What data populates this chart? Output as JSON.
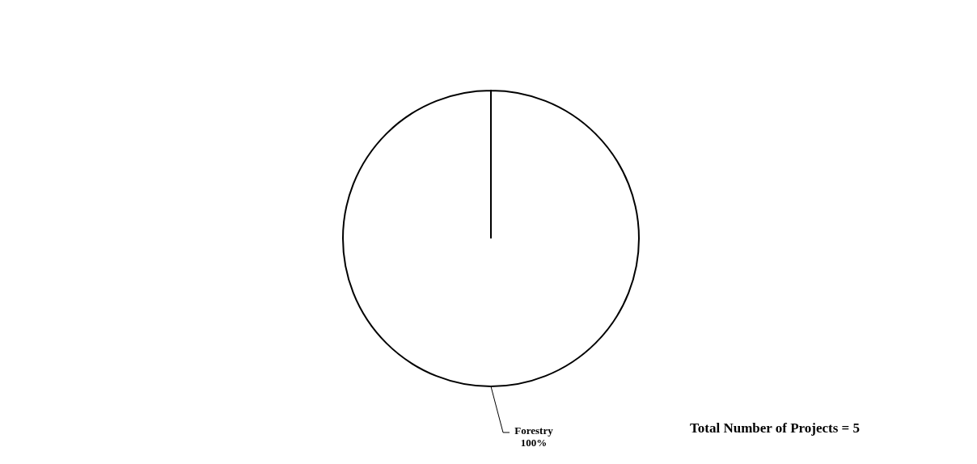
{
  "chart_data": {
    "type": "pie",
    "categories": [
      "Forestry"
    ],
    "values": [
      100
    ],
    "colors": [
      "#ffffff"
    ],
    "value_labels": [
      "100%"
    ],
    "annotations": [
      "Total Number of Projects = 5"
    ]
  }
}
